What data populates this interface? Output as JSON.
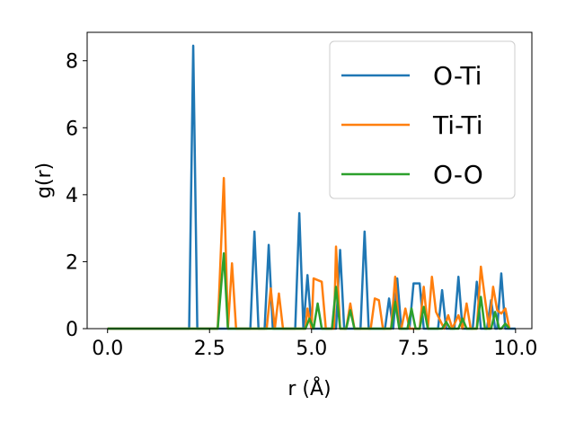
{
  "chart_data": {
    "type": "line",
    "xlabel": "r (Å)",
    "ylabel": "g(r)",
    "xlim": [
      -0.5,
      10.4
    ],
    "ylim": [
      0,
      8.85
    ],
    "xticks": [
      "0.0",
      "2.5",
      "5.0",
      "7.5",
      "10.0"
    ],
    "yticks": [
      "0",
      "2",
      "4",
      "6",
      "8"
    ],
    "legend_position": "top-right",
    "grid": false,
    "series": [
      {
        "name": "O-Ti",
        "color": "#1f77b4",
        "points": [
          [
            0.0,
            0.0
          ],
          [
            2.0,
            0.0
          ],
          [
            2.1,
            8.45
          ],
          [
            2.2,
            0.0
          ],
          [
            3.5,
            0.0
          ],
          [
            3.6,
            2.9
          ],
          [
            3.7,
            0.0
          ],
          [
            3.85,
            0.0
          ],
          [
            3.95,
            2.5
          ],
          [
            4.05,
            0.0
          ],
          [
            4.6,
            0.0
          ],
          [
            4.7,
            3.45
          ],
          [
            4.8,
            0.0
          ],
          [
            4.9,
            1.6
          ],
          [
            5.0,
            0.0
          ],
          [
            5.6,
            0.0
          ],
          [
            5.7,
            2.35
          ],
          [
            5.8,
            0.0
          ],
          [
            6.2,
            0.0
          ],
          [
            6.3,
            2.9
          ],
          [
            6.4,
            0.0
          ],
          [
            6.8,
            0.0
          ],
          [
            6.9,
            0.9
          ],
          [
            7.0,
            0.0
          ],
          [
            7.1,
            1.5
          ],
          [
            7.2,
            0.0
          ],
          [
            7.4,
            0.0
          ],
          [
            7.5,
            1.35
          ],
          [
            7.65,
            1.35
          ],
          [
            7.75,
            0.0
          ],
          [
            8.1,
            0.0
          ],
          [
            8.2,
            1.15
          ],
          [
            8.3,
            0.0
          ],
          [
            8.5,
            0.0
          ],
          [
            8.6,
            1.55
          ],
          [
            8.7,
            0.0
          ],
          [
            8.95,
            0.0
          ],
          [
            9.05,
            1.4
          ],
          [
            9.15,
            0.0
          ],
          [
            9.3,
            0.0
          ],
          [
            9.4,
            0.85
          ],
          [
            9.5,
            0.0
          ],
          [
            9.55,
            0.0
          ],
          [
            9.65,
            1.65
          ],
          [
            9.75,
            0.0
          ],
          [
            10.0,
            0.0
          ]
        ]
      },
      {
        "name": "Ti-Ti",
        "color": "#ff7f0e",
        "points": [
          [
            0.0,
            0.0
          ],
          [
            2.7,
            0.0
          ],
          [
            2.85,
            4.5
          ],
          [
            2.95,
            0.0
          ],
          [
            3.05,
            1.95
          ],
          [
            3.15,
            0.0
          ],
          [
            3.9,
            0.0
          ],
          [
            4.0,
            1.2
          ],
          [
            4.1,
            0.0
          ],
          [
            4.2,
            1.05
          ],
          [
            4.3,
            0.0
          ],
          [
            4.85,
            0.0
          ],
          [
            4.9,
            0.6
          ],
          [
            5.0,
            0.0
          ],
          [
            5.05,
            1.5
          ],
          [
            5.25,
            1.4
          ],
          [
            5.35,
            0.0
          ],
          [
            5.55,
            0.0
          ],
          [
            5.6,
            2.45
          ],
          [
            5.7,
            0.0
          ],
          [
            5.85,
            0.0
          ],
          [
            5.95,
            0.75
          ],
          [
            6.05,
            0.0
          ],
          [
            6.45,
            0.0
          ],
          [
            6.55,
            0.9
          ],
          [
            6.65,
            0.85
          ],
          [
            6.75,
            0.0
          ],
          [
            6.95,
            0.0
          ],
          [
            7.05,
            1.55
          ],
          [
            7.15,
            0.0
          ],
          [
            7.2,
            0.0
          ],
          [
            7.3,
            0.6
          ],
          [
            7.4,
            0.0
          ],
          [
            7.65,
            0.0
          ],
          [
            7.75,
            1.25
          ],
          [
            7.85,
            0.0
          ],
          [
            7.95,
            1.55
          ],
          [
            8.05,
            0.5
          ],
          [
            8.15,
            0.25
          ],
          [
            8.25,
            0.0
          ],
          [
            8.35,
            0.4
          ],
          [
            8.45,
            0.0
          ],
          [
            8.6,
            0.4
          ],
          [
            8.7,
            0.0
          ],
          [
            8.8,
            0.75
          ],
          [
            8.9,
            0.0
          ],
          [
            9.05,
            0.0
          ],
          [
            9.15,
            1.85
          ],
          [
            9.25,
            0.9
          ],
          [
            9.35,
            0.0
          ],
          [
            9.45,
            1.25
          ],
          [
            9.55,
            0.55
          ],
          [
            9.65,
            0.45
          ],
          [
            9.75,
            0.6
          ],
          [
            9.85,
            0.0
          ]
        ]
      },
      {
        "name": "O-O",
        "color": "#2ca02c",
        "points": [
          [
            0.0,
            0.0
          ],
          [
            2.7,
            0.0
          ],
          [
            2.85,
            2.25
          ],
          [
            2.95,
            0.0
          ],
          [
            4.85,
            0.0
          ],
          [
            4.95,
            0.3
          ],
          [
            5.05,
            0.0
          ],
          [
            5.15,
            0.75
          ],
          [
            5.25,
            0.0
          ],
          [
            5.5,
            0.0
          ],
          [
            5.6,
            1.25
          ],
          [
            5.7,
            0.0
          ],
          [
            5.85,
            0.0
          ],
          [
            5.95,
            0.55
          ],
          [
            6.05,
            0.0
          ],
          [
            6.95,
            0.0
          ],
          [
            7.05,
            0.8
          ],
          [
            7.15,
            0.0
          ],
          [
            7.35,
            0.0
          ],
          [
            7.45,
            0.6
          ],
          [
            7.55,
            0.0
          ],
          [
            7.65,
            0.0
          ],
          [
            7.75,
            0.65
          ],
          [
            7.85,
            0.0
          ],
          [
            8.2,
            0.0
          ],
          [
            8.3,
            0.2
          ],
          [
            8.4,
            0.0
          ],
          [
            8.6,
            0.0
          ],
          [
            8.7,
            0.3
          ],
          [
            8.8,
            0.0
          ],
          [
            9.05,
            0.0
          ],
          [
            9.15,
            0.95
          ],
          [
            9.25,
            0.0
          ],
          [
            9.4,
            0.0
          ],
          [
            9.5,
            0.5
          ],
          [
            9.6,
            0.0
          ],
          [
            9.65,
            0.0
          ],
          [
            9.75,
            0.15
          ],
          [
            9.85,
            0.0
          ]
        ]
      }
    ]
  }
}
